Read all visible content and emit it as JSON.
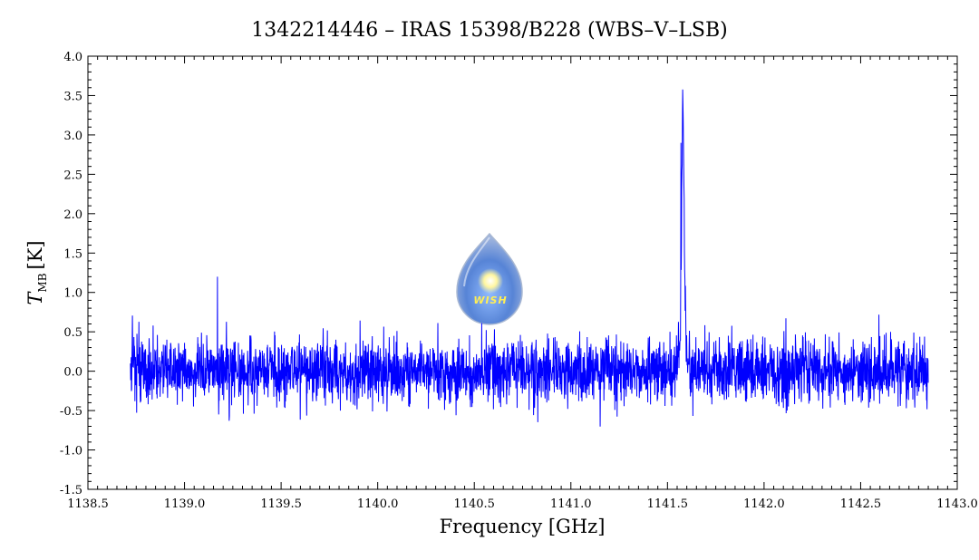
{
  "chart_data": {
    "type": "line",
    "title": "1342214446 – IRAS 15398/B228 (WBS–V–LSB)",
    "xlabel": "Frequency [GHz]",
    "ylabel_main": "T",
    "ylabel_sub": "MB",
    "ylabel_unit": "[K]",
    "xlim": [
      1138.5,
      1143.0
    ],
    "ylim": [
      -1.5,
      4.0
    ],
    "x_ticks": [
      "1138.5",
      "1139.0",
      "1139.5",
      "1140.0",
      "1140.5",
      "1141.0",
      "1141.5",
      "1142.0",
      "1142.5",
      "1143.0"
    ],
    "y_ticks": [
      "-1.5",
      "-1.0",
      "-0.5",
      "0.0",
      "0.5",
      "1.0",
      "1.5",
      "2.0",
      "2.5",
      "3.0",
      "3.5",
      "4.0"
    ],
    "grid": false,
    "series": [
      {
        "color": "#0000ff",
        "x_range": [
          1138.72,
          1142.85
        ],
        "noise_rms": 0.2,
        "peaks": [
          {
            "x": 1141.58,
            "y": 3.4
          },
          {
            "x": 1141.57,
            "y": 2.9
          },
          {
            "x": 1139.17,
            "y": 1.2
          }
        ]
      }
    ],
    "logo": {
      "text": "WISH",
      "color": "#3a6fd0"
    }
  }
}
